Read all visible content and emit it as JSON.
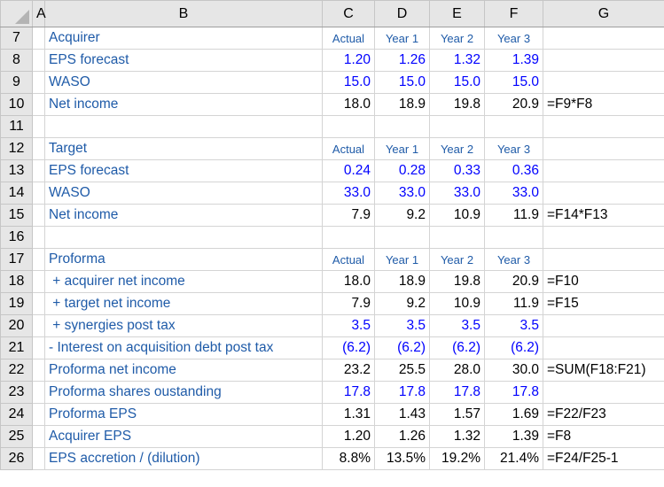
{
  "columns": [
    "A",
    "B",
    "C",
    "D",
    "E",
    "F",
    "G"
  ],
  "rows": [
    {
      "num": "7",
      "label": "Acquirer",
      "type": "header",
      "cells": [
        "Actual",
        "Year 1",
        "Year 2",
        "Year 3"
      ],
      "formula": ""
    },
    {
      "num": "8",
      "label": "EPS forecast",
      "type": "input",
      "cells": [
        "1.20",
        "1.26",
        "1.32",
        "1.39"
      ],
      "formula": ""
    },
    {
      "num": "9",
      "label": "WASO",
      "type": "input",
      "cells": [
        "15.0",
        "15.0",
        "15.0",
        "15.0"
      ],
      "formula": ""
    },
    {
      "num": "10",
      "label": "Net income",
      "type": "calc",
      "cells": [
        "18.0",
        "18.9",
        "19.8",
        "20.9"
      ],
      "formula": "=F9*F8"
    },
    {
      "num": "11",
      "label": "",
      "type": "blank",
      "cells": [
        "",
        "",
        "",
        ""
      ],
      "formula": ""
    },
    {
      "num": "12",
      "label": "Target",
      "type": "header",
      "cells": [
        "Actual",
        "Year 1",
        "Year 2",
        "Year 3"
      ],
      "formula": ""
    },
    {
      "num": "13",
      "label": "EPS forecast",
      "type": "input",
      "cells": [
        "0.24",
        "0.28",
        "0.33",
        "0.36"
      ],
      "formula": ""
    },
    {
      "num": "14",
      "label": "WASO",
      "type": "input",
      "cells": [
        "33.0",
        "33.0",
        "33.0",
        "33.0"
      ],
      "formula": ""
    },
    {
      "num": "15",
      "label": "Net income",
      "type": "calc",
      "cells": [
        "7.9",
        "9.2",
        "10.9",
        "11.9"
      ],
      "formula": "=F14*F13"
    },
    {
      "num": "16",
      "label": "",
      "type": "blank",
      "cells": [
        "",
        "",
        "",
        ""
      ],
      "formula": ""
    },
    {
      "num": "17",
      "label": "Proforma",
      "type": "header",
      "cells": [
        "Actual",
        "Year 1",
        "Year 2",
        "Year 3"
      ],
      "formula": ""
    },
    {
      "num": "18",
      "label": " + acquirer net income",
      "type": "calc",
      "cells": [
        "18.0",
        "18.9",
        "19.8",
        "20.9"
      ],
      "formula": "=F10"
    },
    {
      "num": "19",
      "label": " + target net income",
      "type": "calc",
      "cells": [
        "7.9",
        "9.2",
        "10.9",
        "11.9"
      ],
      "formula": "=F15"
    },
    {
      "num": "20",
      "label": " + synergies post tax",
      "type": "input",
      "cells": [
        "3.5",
        "3.5",
        "3.5",
        "3.5"
      ],
      "formula": ""
    },
    {
      "num": "21",
      "label": "- Interest on acquisition debt post tax",
      "type": "input",
      "cells": [
        "(6.2)",
        "(6.2)",
        "(6.2)",
        "(6.2)"
      ],
      "formula": ""
    },
    {
      "num": "22",
      "label": "Proforma net income",
      "type": "calc",
      "cells": [
        "23.2",
        "25.5",
        "28.0",
        "30.0"
      ],
      "formula": "=SUM(F18:F21)"
    },
    {
      "num": "23",
      "label": "Proforma shares oustanding",
      "type": "input",
      "cells": [
        "17.8",
        "17.8",
        "17.8",
        "17.8"
      ],
      "formula": ""
    },
    {
      "num": "24",
      "label": "Proforma EPS",
      "type": "calc",
      "cells": [
        "1.31",
        "1.43",
        "1.57",
        "1.69"
      ],
      "formula": "=F22/F23"
    },
    {
      "num": "25",
      "label": "Acquirer EPS",
      "type": "calc",
      "cells": [
        "1.20",
        "1.26",
        "1.32",
        "1.39"
      ],
      "formula": "=F8"
    },
    {
      "num": "26",
      "label": "EPS accretion / (dilution)",
      "type": "calc",
      "cells": [
        "8.8%",
        "13.5%",
        "19.2%",
        "21.4%"
      ],
      "formula": "=F24/F25-1"
    }
  ],
  "colors": {
    "label": "#1f5ba8",
    "input": "#0000ff",
    "calc": "#000000",
    "header_bg": "#e6e6e6",
    "grid": "#d4d4d4"
  }
}
